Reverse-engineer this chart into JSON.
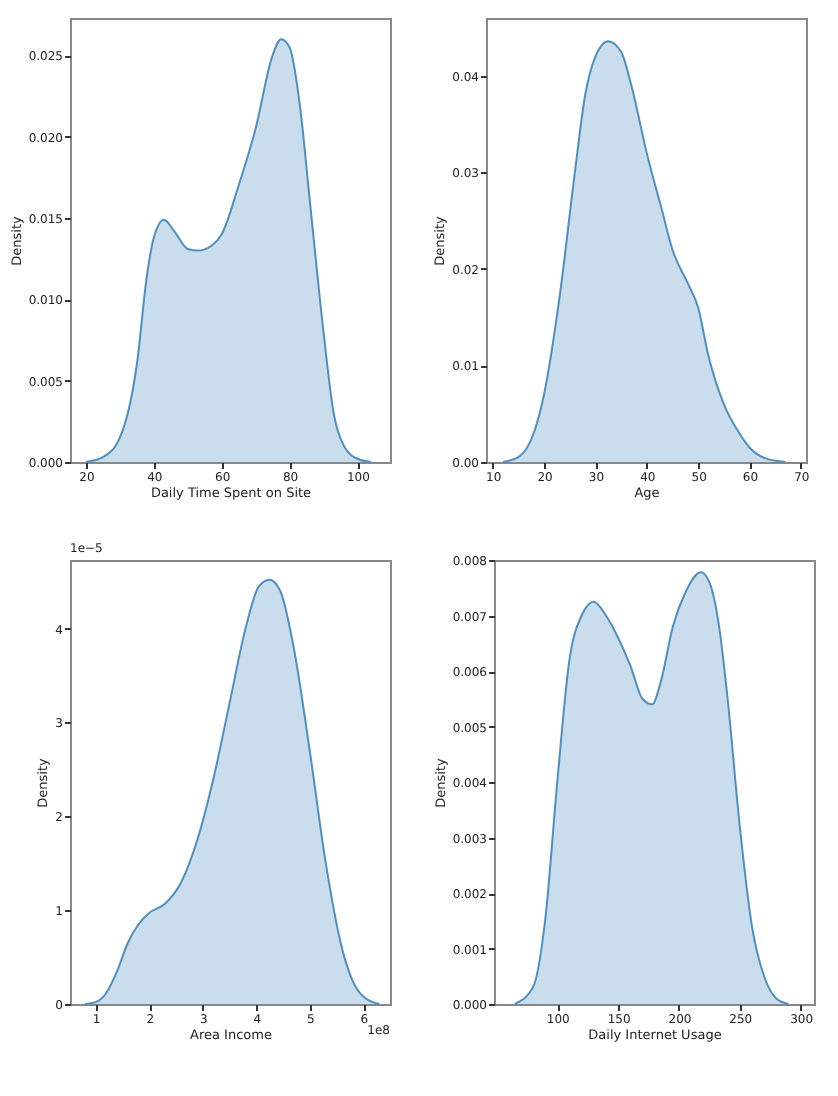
{
  "chart_data": [
    {
      "type": "area",
      "xlabel": "Daily Time Spent on Site",
      "ylabel": "Density",
      "grid": false,
      "xlim": [
        15.3,
        109.6
      ],
      "ylim": [
        0,
        0.0273
      ],
      "xticks": [
        20,
        40,
        60,
        80,
        100
      ],
      "yticks": [
        {
          "value": 0,
          "label": "0.000"
        },
        0.005,
        {
          "value": 0.01,
          "label": "0.010"
        },
        0.015,
        {
          "value": 0.02,
          "label": "0.020"
        },
        0.025
      ],
      "x": [
        20,
        25,
        30,
        35,
        38,
        40,
        43,
        46,
        50,
        53,
        57,
        60,
        65,
        70,
        75,
        77.5,
        80,
        83,
        86,
        90,
        93,
        96,
        100,
        104
      ],
      "series": [
        {
          "color": "#4f8fc0",
          "values": [
            0,
            0.0003,
            0.0015,
            0.006,
            0.0115,
            0.0138,
            0.0149,
            0.0142,
            0.0131,
            0.013,
            0.0133,
            0.014,
            0.017,
            0.0205,
            0.025,
            0.026,
            0.0255,
            0.022,
            0.016,
            0.008,
            0.003,
            0.001,
            0.0002,
            0
          ]
        }
      ]
    },
    {
      "type": "area",
      "xlabel": "Age",
      "ylabel": "Density",
      "grid": false,
      "xlim": [
        8.7,
        71
      ],
      "ylim": [
        0,
        0.046
      ],
      "xticks": [
        10,
        20,
        30,
        40,
        50,
        60,
        70
      ],
      "yticks": [
        {
          "value": 0,
          "label": "0.00"
        },
        0.01,
        0.02,
        0.03,
        0.04
      ],
      "x": [
        12,
        15,
        18,
        20,
        23,
        26,
        28,
        30,
        32.5,
        35,
        37,
        40,
        43,
        45,
        48,
        50,
        52,
        55,
        58,
        60,
        63,
        67
      ],
      "series": [
        {
          "color": "#4f8fc0",
          "values": [
            0,
            0.0005,
            0.003,
            0.007,
            0.017,
            0.03,
            0.038,
            0.042,
            0.0436,
            0.0425,
            0.039,
            0.032,
            0.026,
            0.022,
            0.0185,
            0.016,
            0.011,
            0.006,
            0.003,
            0.0015,
            0.0004,
            0
          ]
        }
      ]
    },
    {
      "type": "area",
      "xlabel": "Area Income",
      "ylabel": "Density",
      "grid": false,
      "xlim": [
        0.52,
        6.5
      ],
      "ylim": [
        0,
        4.73
      ],
      "xticks": [
        1,
        2,
        3,
        4,
        5,
        6
      ],
      "yticks": [
        0,
        1,
        2,
        3,
        4
      ],
      "annotations": [
        "1e−5",
        "1e8"
      ],
      "x": [
        0.8,
        1.0,
        1.2,
        1.4,
        1.6,
        1.8,
        2.0,
        2.3,
        2.6,
        2.9,
        3.2,
        3.5,
        3.8,
        4.05,
        4.25,
        4.45,
        4.7,
        5.0,
        5.3,
        5.6,
        5.8,
        6.0,
        6.3
      ],
      "series": [
        {
          "color": "#4f8fc0",
          "values": [
            0,
            0.02,
            0.12,
            0.35,
            0.65,
            0.85,
            0.97,
            1.07,
            1.3,
            1.75,
            2.4,
            3.2,
            4.0,
            4.45,
            4.52,
            4.4,
            3.8,
            2.7,
            1.5,
            0.6,
            0.25,
            0.08,
            0
          ]
        }
      ]
    },
    {
      "type": "area",
      "xlabel": "Daily Internet Usage",
      "ylabel": "Density",
      "grid": false,
      "xlim": [
        48,
        311
      ],
      "ylim": [
        0,
        0.008
      ],
      "xticks": [
        100,
        150,
        200,
        250,
        300
      ],
      "yticks": [
        {
          "value": 0,
          "label": "0.000"
        },
        0.001,
        0.002,
        0.003,
        0.004,
        0.005,
        0.006,
        0.007,
        0.008
      ],
      "x": [
        65,
        80,
        90,
        100,
        110,
        120,
        130,
        140,
        150,
        160,
        170,
        178,
        185,
        195,
        205,
        218,
        225,
        233,
        240,
        250,
        260,
        270,
        280,
        290
      ],
      "series": [
        {
          "color": "#4f8fc0",
          "values": [
            0,
            0.0003,
            0.0015,
            0.004,
            0.0062,
            0.007,
            0.00725,
            0.007,
            0.0066,
            0.0061,
            0.0055,
            0.0054,
            0.0058,
            0.0068,
            0.0074,
            0.00778,
            0.0076,
            0.0068,
            0.0055,
            0.0032,
            0.0014,
            0.0005,
            0.0001,
            0
          ]
        }
      ]
    }
  ]
}
